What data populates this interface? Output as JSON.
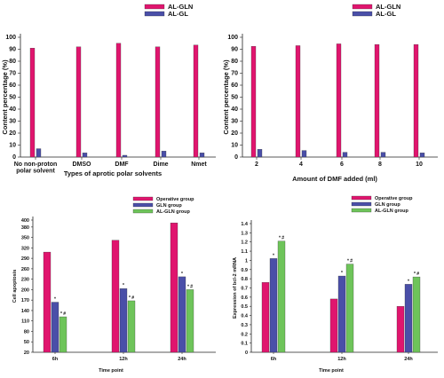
{
  "chart_data": [
    {
      "type": "bar",
      "xlabel": "Types of aprotic polar solvents",
      "ylabel": "Content percentage (%)",
      "ylim": [
        0,
        100
      ],
      "yticks": [
        0,
        10,
        20,
        30,
        40,
        50,
        60,
        70,
        80,
        90,
        100
      ],
      "categories": [
        [
          "No non-proton",
          "polar solvent"
        ],
        [
          "DMSO"
        ],
        [
          "DMF"
        ],
        [
          "Dime"
        ],
        [
          "Nmet"
        ]
      ],
      "legend_position": "top-right",
      "series": [
        {
          "name": "AL-GLN",
          "color": "#e0156e",
          "values": [
            91,
            92,
            95,
            92,
            93.5
          ]
        },
        {
          "name": "AL-GL",
          "color": "#4a4fa8",
          "values": [
            7,
            3.5,
            1.5,
            5,
            3.5
          ]
        }
      ]
    },
    {
      "type": "bar",
      "xlabel": "Amount of DMF added (ml)",
      "ylabel": "Content percentage (%)",
      "ylim": [
        0,
        100
      ],
      "yticks": [
        0,
        10,
        20,
        30,
        40,
        50,
        60,
        70,
        80,
        90,
        100
      ],
      "categories": [
        [
          "2"
        ],
        [
          "4"
        ],
        [
          "6"
        ],
        [
          "8"
        ],
        [
          "10"
        ]
      ],
      "legend_position": "top-right",
      "series": [
        {
          "name": "AL-GLN",
          "color": "#e0156e",
          "values": [
            92.5,
            93,
            94.5,
            94,
            94
          ]
        },
        {
          "name": "AL-GL",
          "color": "#4a4fa8",
          "values": [
            6.5,
            5.5,
            4,
            4,
            3.5
          ]
        }
      ]
    },
    {
      "type": "bar",
      "xlabel": "Time point",
      "ylabel": "Cell apoptosis",
      "ylim": [
        20,
        400
      ],
      "yticks": [
        20,
        50,
        80,
        110,
        140,
        170,
        200,
        230,
        260,
        290,
        320,
        350,
        380,
        400
      ],
      "categories": [
        [
          "6h"
        ],
        [
          "12h"
        ],
        [
          "24h"
        ]
      ],
      "legend_position": "top-right",
      "series": [
        {
          "name": "Operative group",
          "color": "#e0156e",
          "values": [
            308,
            342,
            392
          ]
        },
        {
          "name": "GLN group",
          "color": "#4a4fa8",
          "values": [
            164,
            203,
            237
          ]
        },
        {
          "name": "AL-GLN group",
          "color": "#6ec45a",
          "values": [
            122,
            168,
            200
          ]
        }
      ],
      "annotations": [
        {
          "category": 0,
          "series": 1,
          "text": "*"
        },
        {
          "category": 0,
          "series": 2,
          "text": "* #"
        },
        {
          "category": 1,
          "series": 1,
          "text": "*"
        },
        {
          "category": 1,
          "series": 2,
          "text": "* #"
        },
        {
          "category": 2,
          "series": 1,
          "text": "*"
        },
        {
          "category": 2,
          "series": 2,
          "text": "* #"
        }
      ]
    },
    {
      "type": "bar",
      "xlabel": "Time point",
      "ylabel": "Expression of bcl-2 mRNA",
      "ylim": [
        0,
        1.4
      ],
      "yticks": [
        0,
        0.1,
        0.2,
        0.3,
        0.4,
        0.5,
        0.6,
        0.7,
        0.8,
        0.9,
        1.0,
        1.1,
        1.2,
        1.3,
        1.4
      ],
      "categories": [
        [
          "6h"
        ],
        [
          "12h"
        ],
        [
          "24h"
        ]
      ],
      "legend_position": "top-right",
      "series": [
        {
          "name": "Operative group",
          "color": "#e0156e",
          "values": [
            0.76,
            0.58,
            0.5
          ]
        },
        {
          "name": "GLN group",
          "color": "#4a4fa8",
          "values": [
            1.02,
            0.83,
            0.74
          ]
        },
        {
          "name": "AL-GLN group",
          "color": "#6ec45a",
          "values": [
            1.21,
            0.96,
            0.82
          ]
        }
      ],
      "annotations": [
        {
          "category": 0,
          "series": 1,
          "text": "*"
        },
        {
          "category": 0,
          "series": 2,
          "text": "* #"
        },
        {
          "category": 1,
          "series": 1,
          "text": "*"
        },
        {
          "category": 1,
          "series": 2,
          "text": "* #"
        },
        {
          "category": 2,
          "series": 1,
          "text": "*"
        },
        {
          "category": 2,
          "series": 2,
          "text": "* #"
        }
      ]
    }
  ]
}
